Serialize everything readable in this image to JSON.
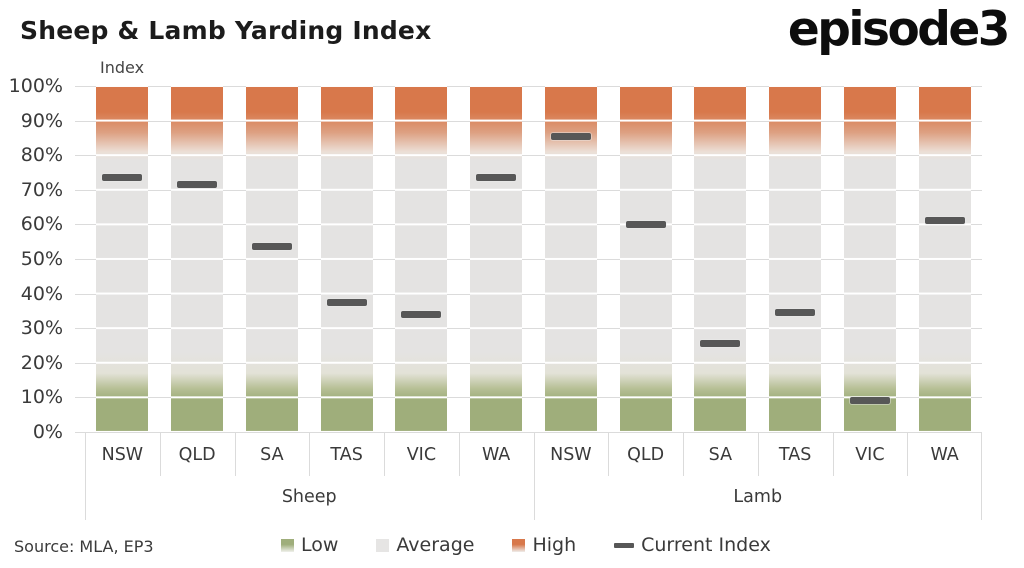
{
  "header": {
    "title": "Sheep & Lamb Yarding Index",
    "logo": "episode3"
  },
  "footer": {
    "source": "Source: MLA, EP3"
  },
  "colors": {
    "high": "#D8784B",
    "average": "#E4E3E2",
    "low": "#9FAE7B",
    "marker": "#575757",
    "grid": "#DBDBDB",
    "text": "#3A3A3A",
    "title": "#1C1C1C"
  },
  "chart_data": {
    "type": "bar",
    "title": "Sheep & Lamb Yarding Index",
    "y_axis": {
      "label": "Index",
      "min": 0,
      "max": 100,
      "tick_step": 10,
      "grid": true,
      "tick_labels": [
        "100%",
        "90%",
        "80%",
        "70%",
        "60%",
        "50%",
        "40%",
        "30%",
        "20%",
        "10%",
        "0%"
      ]
    },
    "x_axis": {
      "groups": [
        {
          "label": "Sheep",
          "categories": [
            "NSW",
            "QLD",
            "SA",
            "TAS",
            "VIC",
            "WA"
          ]
        },
        {
          "label": "Lamb",
          "categories": [
            "NSW",
            "QLD",
            "SA",
            "TAS",
            "VIC",
            "WA"
          ]
        }
      ]
    },
    "bands": [
      {
        "label": "Low",
        "from": 0,
        "to": 20
      },
      {
        "label": "Average",
        "from": 20,
        "to": 80
      },
      {
        "label": "High",
        "from": 80,
        "to": 100
      }
    ],
    "series": [
      {
        "name": "Current Index",
        "points": [
          {
            "group": "Sheep",
            "state": "NSW",
            "value": 73.5
          },
          {
            "group": "Sheep",
            "state": "QLD",
            "value": 71.5
          },
          {
            "group": "Sheep",
            "state": "SA",
            "value": 53.5
          },
          {
            "group": "Sheep",
            "state": "TAS",
            "value": 37.5
          },
          {
            "group": "Sheep",
            "state": "VIC",
            "value": 34
          },
          {
            "group": "Sheep",
            "state": "WA",
            "value": 73.5
          },
          {
            "group": "Lamb",
            "state": "NSW",
            "value": 85.5
          },
          {
            "group": "Lamb",
            "state": "QLD",
            "value": 60
          },
          {
            "group": "Lamb",
            "state": "SA",
            "value": 25.5
          },
          {
            "group": "Lamb",
            "state": "TAS",
            "value": 34.5
          },
          {
            "group": "Lamb",
            "state": "VIC",
            "value": 9
          },
          {
            "group": "Lamb",
            "state": "WA",
            "value": 61
          }
        ]
      }
    ],
    "legend": [
      {
        "label": "Low",
        "swatch": "low"
      },
      {
        "label": "Average",
        "swatch": "average"
      },
      {
        "label": "High",
        "swatch": "high"
      },
      {
        "label": "Current Index",
        "swatch": "current-index"
      }
    ],
    "legend_position": "bottom"
  }
}
